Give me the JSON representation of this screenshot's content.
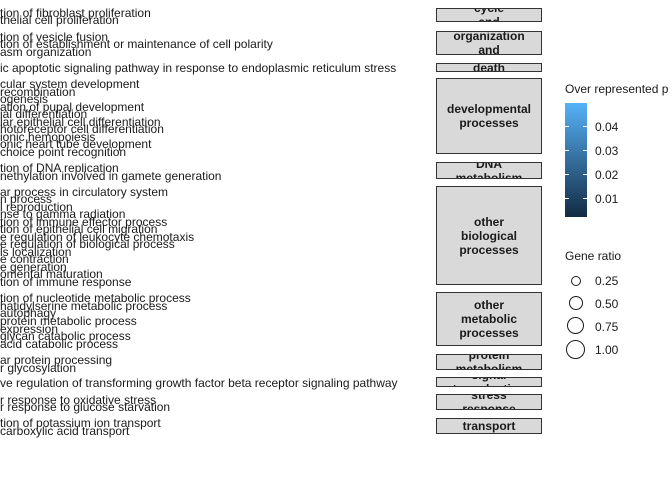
{
  "chart_data": {
    "type": "faceted dot plot",
    "terms": [
      "tion of fibroblast proliferation",
      "thelial cell proliferation",
      "tion of vesicle fusion",
      "tion of establishment or maintenance of cell polarity",
      "asm organization",
      "ic apoptotic signaling pathway in response to endoplasmic reticulum stress",
      "cular system development",
      "recombination",
      "ogenesis",
      "ation of pupal development",
      "ial differentiation",
      "lar epithelial cell differentiation",
      "hotoreceptor cell differentiation",
      "ionic hemopoiesis",
      "onic heart tube development",
      "choice point recognition",
      "tion of DNA replication",
      "nethylation involved in gamete generation",
      "ar process in circulatory system",
      "n process",
      "l reproduction",
      "nse to gamma radiation",
      "tion of immune effector process",
      "tion of epithelial cell migration",
      "e regulation of leukocyte chemotaxis",
      "e regulation of biological process",
      "ls localization",
      "e contraction",
      "e generation",
      "omental maturation",
      "tion of immune response",
      "tion of nucleotide metabolic process",
      "hatidylserine metabolic process",
      "autophagy",
      "protein metabolic process",
      "expression",
      "glycan catabolic process",
      "acid catabolic process",
      "ar protein processing",
      "r glycosylation",
      "ve regulation of transforming growth factor beta receptor signaling pathway",
      "r response to oxidative stress",
      "r response to glucose starvation",
      "tion of potassium ion transport",
      "carboxylic acid transport"
    ],
    "facets": [
      "cycle\nand",
      "cell\norganization\nand\nbiogenesis",
      "death",
      "developmental\nprocesses",
      "DNA\nmetabolism",
      "other\nbiological\nprocesses",
      "other\nmetabolic\nprocesses",
      "protein\nmetabolism",
      "signal\ntransduction",
      "stress\nresponse",
      "transport"
    ],
    "color_legend": {
      "title": "Over represented p",
      "ticks": [
        "0.04",
        "0.03",
        "0.02",
        "0.01"
      ],
      "low_color": "#132b43",
      "high_color": "#56b1f7"
    },
    "size_legend": {
      "title": "Gene ratio",
      "labels": [
        "0.25",
        "0.50",
        "0.75",
        "1.00"
      ]
    }
  }
}
